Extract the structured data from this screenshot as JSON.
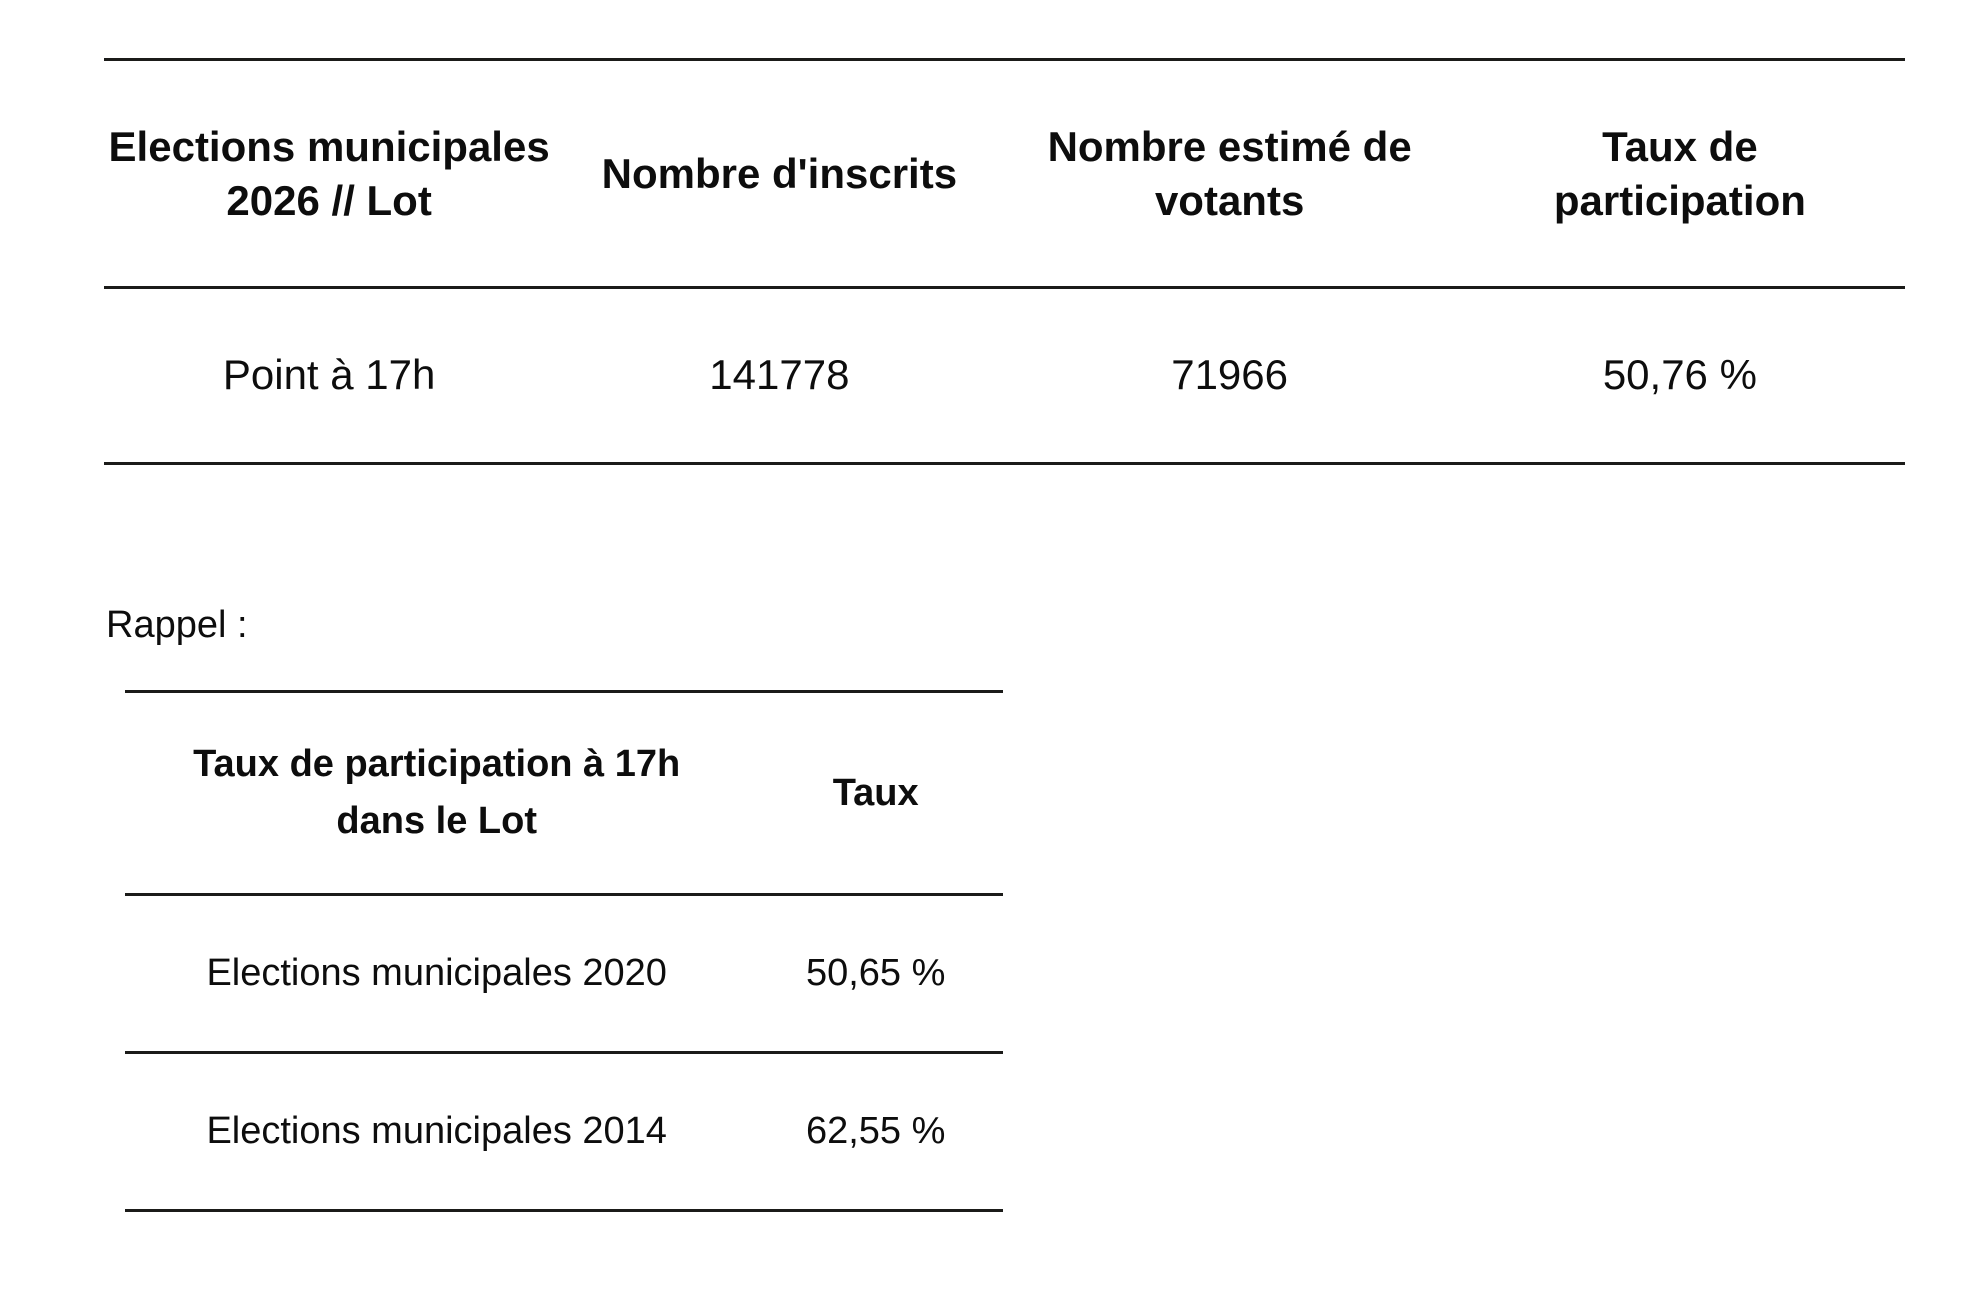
{
  "colors": {
    "background": "#ffffff",
    "text": "#0d0d0d",
    "rule": "#1b1b19"
  },
  "table1": {
    "col_headers": [
      "Elections municipales\n2026 // Lot",
      "Nombre d'inscrits",
      "Nombre estimé de\nvotants",
      "Taux de\nparticipation"
    ],
    "row": {
      "label": "Point à 17h",
      "inscrits": "141778",
      "votants": "71966",
      "taux": "50,76 %"
    }
  },
  "rappel": {
    "label": "Rappel :"
  },
  "table2": {
    "col_headers": [
      "Taux de participation à 17h\ndans le Lot",
      "Taux"
    ],
    "rows": [
      {
        "label": "Elections municipales 2020",
        "taux": "50,65 %"
      },
      {
        "label": "Elections municipales 2014",
        "taux": "62,55 %"
      }
    ]
  }
}
